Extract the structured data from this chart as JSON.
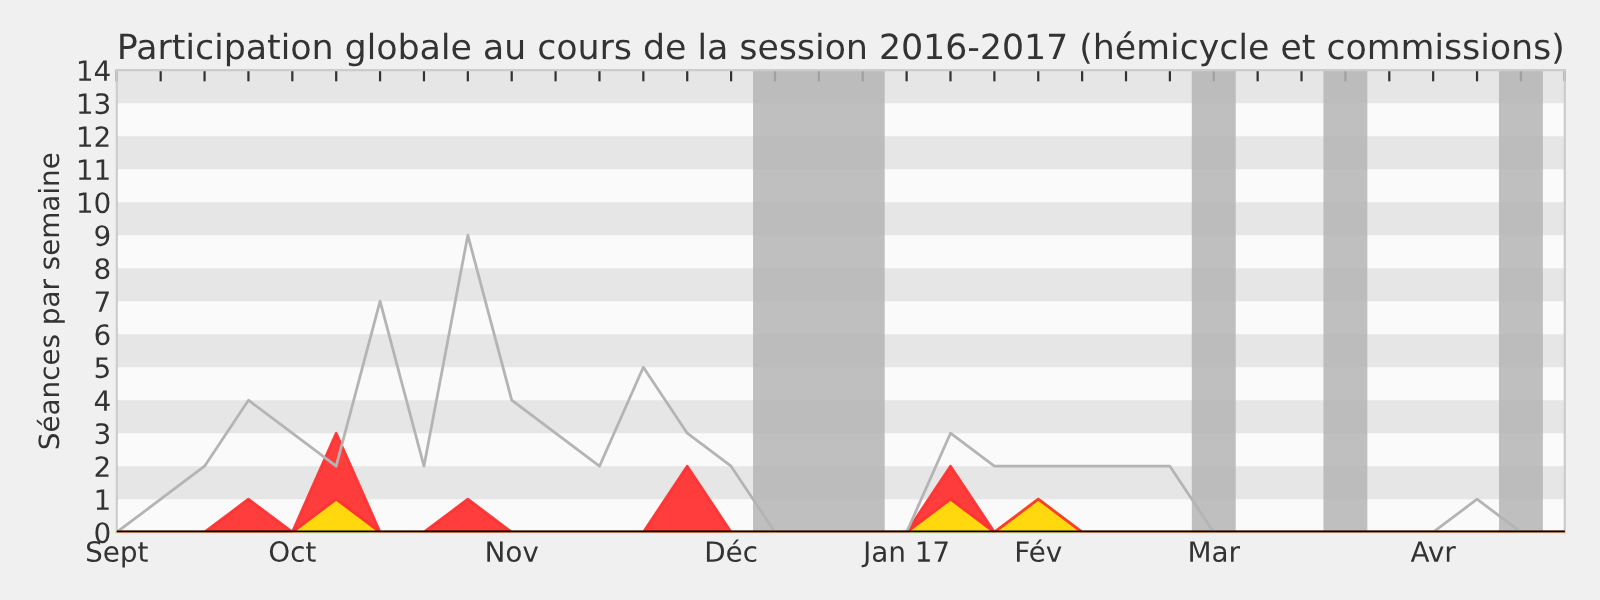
{
  "chart_data": {
    "type": "area",
    "stacked": true,
    "title": "Participation globale au cours de la session 2016-2017 (hémicycle et commissions)",
    "ylabel": "Séances par semaine",
    "x": [
      "2016-09-12",
      "2016-09-19",
      "2016-09-26",
      "2016-10-03",
      "2016-10-10",
      "2016-10-17",
      "2016-10-24",
      "2016-10-31",
      "2016-11-07",
      "2016-11-14",
      "2016-11-21",
      "2016-11-28",
      "2016-12-05",
      "2016-12-12",
      "2016-12-19",
      "2016-12-26",
      "2017-01-02",
      "2017-01-09",
      "2017-01-16",
      "2017-01-23",
      "2017-01-30",
      "2017-02-06",
      "2017-02-13",
      "2017-02-20",
      "2017-02-27",
      "2017-03-06",
      "2017-03-13",
      "2017-03-20",
      "2017-03-27",
      "2017-04-03",
      "2017-04-10",
      "2017-04-17",
      "2017-04-24",
      "2017-05-01"
    ],
    "series": [
      {
        "color": "#ffd700",
        "values": [
          0,
          0,
          0,
          0,
          0,
          1,
          0,
          0,
          0,
          0,
          0,
          0,
          0,
          0,
          0,
          0,
          0,
          0,
          0,
          1,
          0,
          1,
          0,
          0,
          0,
          0,
          0,
          0,
          0,
          0,
          0,
          0,
          0,
          0
        ]
      },
      {
        "color": "#ff3333",
        "values": [
          0,
          0,
          0,
          1,
          0,
          2,
          0,
          0,
          1,
          0,
          0,
          0,
          0,
          2,
          0,
          0,
          0,
          0,
          0,
          1,
          0,
          0,
          0,
          0,
          0,
          0,
          0,
          0,
          0,
          0,
          0,
          0,
          0,
          0
        ]
      },
      {
        "type": "line",
        "color": "#b4b4b4",
        "values": [
          0,
          1,
          2,
          4,
          3,
          2,
          7,
          2,
          9,
          4,
          3,
          2,
          5,
          3,
          2,
          0,
          0,
          0,
          0,
          3,
          2,
          2,
          2,
          2,
          2,
          0,
          0,
          0,
          0,
          0,
          0,
          1,
          0,
          0
        ]
      }
    ],
    "xlim": [
      "2016-09-12",
      "2017-05-01"
    ],
    "xticks": [
      {
        "value": "2016-09-12",
        "label": "Sept"
      },
      {
        "value": "2016-09-19",
        "label": null
      },
      {
        "value": "2016-09-26",
        "label": null
      },
      {
        "value": "2016-10-03",
        "label": null
      },
      {
        "value": "2016-10-10",
        "label": "Oct"
      },
      {
        "value": "2016-10-17",
        "label": null
      },
      {
        "value": "2016-10-24",
        "label": null
      },
      {
        "value": "2016-10-31",
        "label": null
      },
      {
        "value": "2016-11-07",
        "label": null
      },
      {
        "value": "2016-11-14",
        "label": "Nov"
      },
      {
        "value": "2016-11-21",
        "label": null
      },
      {
        "value": "2016-11-28",
        "label": null
      },
      {
        "value": "2016-12-05",
        "label": null
      },
      {
        "value": "2016-12-12",
        "label": null
      },
      {
        "value": "2016-12-19",
        "label": "Déc"
      },
      {
        "value": "2016-12-26",
        "label": null
      },
      {
        "value": "2017-01-02",
        "label": null
      },
      {
        "value": "2017-01-09",
        "label": null
      },
      {
        "value": "2017-01-16",
        "label": "Jan 17"
      },
      {
        "value": "2017-01-23",
        "label": null
      },
      {
        "value": "2017-01-30",
        "label": null
      },
      {
        "value": "2017-02-06",
        "label": "Fév"
      },
      {
        "value": "2017-02-13",
        "label": null
      },
      {
        "value": "2017-02-20",
        "label": null
      },
      {
        "value": "2017-02-27",
        "label": null
      },
      {
        "value": "2017-03-06",
        "label": "Mar"
      },
      {
        "value": "2017-03-13",
        "label": null
      },
      {
        "value": "2017-03-20",
        "label": null
      },
      {
        "value": "2017-03-27",
        "label": null
      },
      {
        "value": "2017-04-03",
        "label": null
      },
      {
        "value": "2017-04-10",
        "label": "Avr"
      },
      {
        "value": "2017-04-17",
        "label": null
      },
      {
        "value": "2017-04-24",
        "label": null
      },
      {
        "value": "2017-05-01",
        "label": null
      }
    ],
    "ylim": [
      0,
      14
    ],
    "yticks": [
      0,
      1,
      2,
      3,
      4,
      5,
      6,
      7,
      8,
      9,
      10,
      11,
      12,
      13,
      14
    ],
    "bands": [
      {
        "axis": "x",
        "from": "2016-12-22T12:00",
        "to": "2017-01-12T12:00",
        "color": "#b4b4b4"
      },
      {
        "axis": "x",
        "from": "2017-03-02T12:00",
        "to": "2017-03-09T12:00",
        "color": "#b4b4b4"
      },
      {
        "axis": "x",
        "from": "2017-03-23T12:00",
        "to": "2017-03-30T12:00",
        "color": "#b4b4b4"
      },
      {
        "axis": "x",
        "from": "2017-04-20T12:00",
        "to": "2017-04-27T12:00",
        "color": "#b4b4b4"
      }
    ],
    "legend": false
  }
}
